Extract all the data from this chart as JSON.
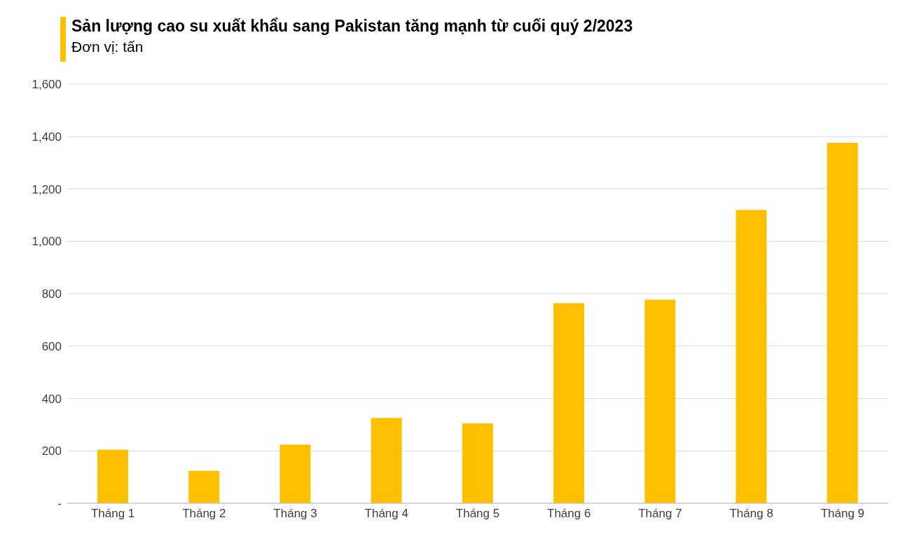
{
  "chart_data": {
    "type": "bar",
    "title": "Sản lượng cao su xuất khẩu sang Pakistan tăng mạnh từ cuối quý 2/2023",
    "subtitle": "Đơn vị: tấn",
    "categories": [
      "Tháng 1",
      "Tháng 2",
      "Tháng 3",
      "Tháng 4",
      "Tháng 5",
      "Tháng 6",
      "Tháng 7",
      "Tháng 8",
      "Tháng 9"
    ],
    "values": [
      205,
      124,
      224,
      326,
      305,
      764,
      777,
      1120,
      1376
    ],
    "color": "#ffc000",
    "ylim": [
      0,
      1600
    ],
    "yticks": [
      {
        "value": 0,
        "label": "-"
      },
      {
        "value": 200,
        "label": "200"
      },
      {
        "value": 400,
        "label": "400"
      },
      {
        "value": 600,
        "label": "600"
      },
      {
        "value": 800,
        "label": "800"
      },
      {
        "value": 1000,
        "label": "1,000"
      },
      {
        "value": 1200,
        "label": "1,200"
      },
      {
        "value": 1400,
        "label": "1,400"
      },
      {
        "value": 1600,
        "label": "1,600"
      }
    ],
    "grid": "y",
    "legend": false
  }
}
